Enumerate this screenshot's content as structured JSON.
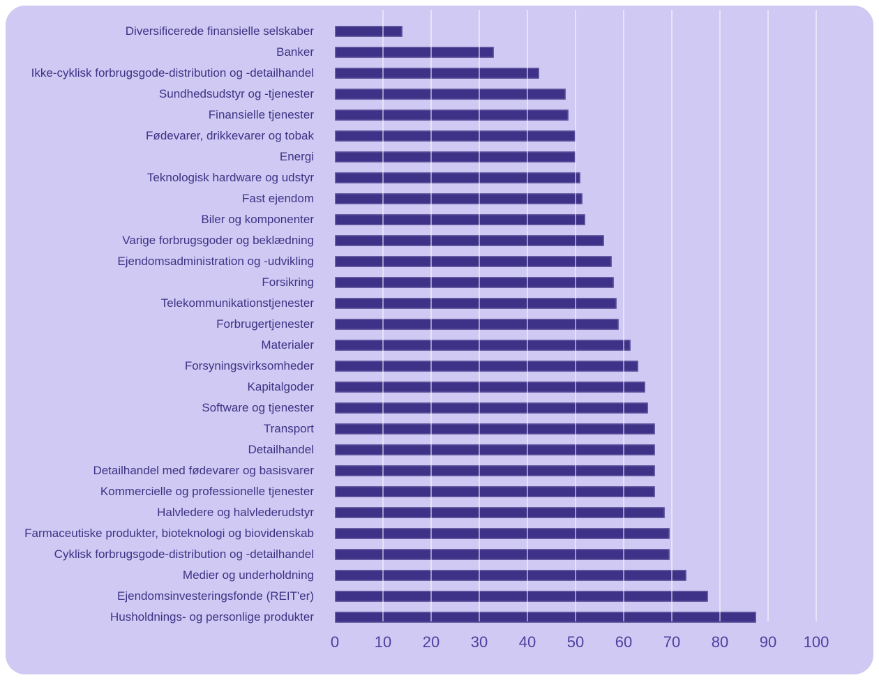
{
  "chart": {
    "outer_background": "#ffffff",
    "card_background": "#cfc9f4",
    "bar_color": "#3e3288",
    "bar_outline_color": "rgba(255,255,255,0.22)",
    "gridline_color": "rgba(255,255,255,0.5)",
    "category_label_color": "#3d3384",
    "tick_label_color": "#4e3f9e"
  },
  "chart_data": {
    "type": "bar",
    "orientation": "horizontal",
    "title": "",
    "xlabel": "",
    "ylabel": "",
    "xlim": [
      0,
      100
    ],
    "x_ticks": [
      0,
      10,
      20,
      30,
      40,
      50,
      60,
      70,
      80,
      90,
      100
    ],
    "grid": "vertical-only",
    "legend": "none",
    "categories": [
      "Diversificerede finansielle selskaber",
      "Banker",
      "Ikke-cyklisk forbrugsgode-distribution og -detailhandel",
      "Sundhedsudstyr og -tjenester",
      "Finansielle tjenester",
      "Fødevarer, drikkevarer og tobak",
      "Energi",
      "Teknologisk hardware og udstyr",
      "Fast ejendom",
      "Biler og komponenter",
      "Varige forbrugsgoder og beklædning",
      "Ejendomsadministration og -udvikling",
      "Forsikring",
      "Telekommunikationstjenester",
      "Forbrugertjenester",
      "Materialer",
      "Forsyningsvirksomheder",
      "Kapitalgoder",
      "Software og tjenester",
      "Transport",
      "Detailhandel",
      "Detailhandel med fødevarer og basisvarer",
      "Kommercielle og professionelle tjenester",
      "Halvledere og halvlederudstyr",
      "Farmaceutiske produkter, bioteknologi og biovidenskab",
      "Cyklisk forbrugsgode-distribution og -detailhandel",
      "Medier og underholdning",
      "Ejendomsinvesteringsfonde (REIT'er)",
      "Husholdnings- og personlige produkter"
    ],
    "values": [
      14,
      33,
      42.5,
      48,
      48.5,
      50,
      50,
      51,
      51.5,
      52,
      56,
      57.5,
      58,
      58.5,
      59,
      61.5,
      63,
      64.5,
      65,
      66.5,
      66.5,
      66.5,
      66.5,
      68.5,
      69.5,
      69.5,
      73,
      77.5,
      87.5
    ]
  }
}
